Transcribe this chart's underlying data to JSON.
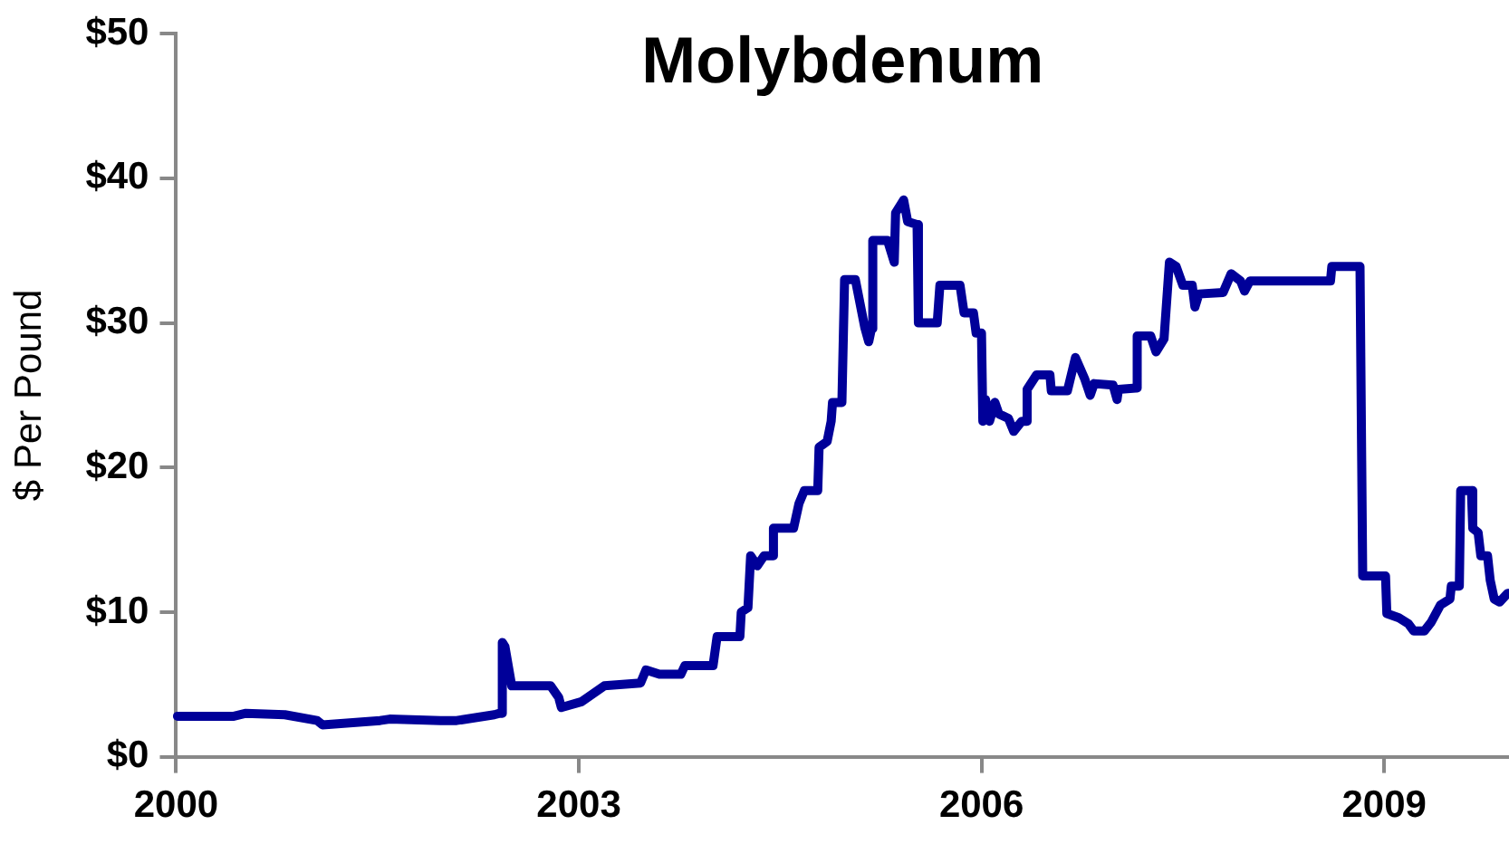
{
  "chart_data": {
    "type": "line",
    "title": "Molybdenum",
    "ylabel": "$ Per Pound",
    "xlim": [
      2000,
      2009.93
    ],
    "xticks": [
      2000,
      2003,
      2006,
      2009
    ],
    "ylim": [
      0,
      50
    ],
    "yticks": [
      {
        "value": 0,
        "label": "$0"
      },
      {
        "value": 10,
        "label": "$10"
      },
      {
        "value": 20,
        "label": "$20"
      },
      {
        "value": 30,
        "label": "$30"
      },
      {
        "value": 40,
        "label": "$40"
      },
      {
        "value": 50,
        "label": "$50"
      }
    ],
    "grid": false,
    "legend": false,
    "marker": "none",
    "line_style": "solid",
    "series": [
      {
        "color": "#000099",
        "x": [
          2000.01,
          2000.43,
          2000.52,
          2000.81,
          2001.05,
          2001.09,
          2001.52,
          2001.59,
          2001.97,
          2002.09,
          2002.37,
          2002.41,
          2002.43,
          2002.43,
          2002.45,
          2002.5,
          2002.79,
          2002.85,
          2002.87,
          2003.02,
          2003.19,
          2003.46,
          2003.5,
          2003.6,
          2003.76,
          2003.79,
          2004.0,
          2004.03,
          2004.2,
          2004.21,
          2004.26,
          2004.28,
          2004.33,
          2004.38,
          2004.44,
          2004.45,
          2004.6,
          2004.64,
          2004.68,
          2004.78,
          2004.79,
          2004.85,
          2004.88,
          2004.89,
          2004.96,
          2004.98,
          2005.06,
          2005.13,
          2005.16,
          2005.18,
          2005.19,
          2005.3,
          2005.35,
          2005.36,
          2005.42,
          2005.45,
          2005.52,
          2005.53,
          2005.67,
          2005.69,
          2005.84,
          2005.87,
          2005.94,
          2005.96,
          2006.0,
          2006.01,
          2006.03,
          2006.06,
          2006.1,
          2006.13,
          2006.2,
          2006.24,
          2006.3,
          2006.33,
          2006.34,
          2006.41,
          2006.51,
          2006.52,
          2006.64,
          2006.7,
          2006.77,
          2006.81,
          2006.84,
          2006.98,
          2007.01,
          2007.02,
          2007.15,
          2007.16,
          2007.26,
          2007.3,
          2007.36,
          2007.4,
          2007.45,
          2007.5,
          2007.57,
          2007.59,
          2007.62,
          2007.8,
          2007.86,
          2007.93,
          2007.96,
          2008.0,
          2008.6,
          2008.61,
          2008.82,
          2008.84,
          2009.01,
          2009.02,
          2009.11,
          2009.18,
          2009.22,
          2009.3,
          2009.35,
          2009.42,
          2009.49,
          2009.5,
          2009.56,
          2009.57,
          2009.65,
          2009.66,
          2009.7,
          2009.72,
          2009.77,
          2009.79,
          2009.82,
          2009.86,
          2009.92
        ],
        "values": [
          2.8,
          2.8,
          3.0,
          2.9,
          2.5,
          2.2,
          2.5,
          2.6,
          2.5,
          2.5,
          2.9,
          3.0,
          3.0,
          7.9,
          7.6,
          4.9,
          4.9,
          4.1,
          3.4,
          3.8,
          4.9,
          5.1,
          6.0,
          5.7,
          5.7,
          6.3,
          6.3,
          8.3,
          8.3,
          10.0,
          10.3,
          13.9,
          13.2,
          13.9,
          13.9,
          15.8,
          15.8,
          17.5,
          18.4,
          18.4,
          21.4,
          21.8,
          23.2,
          24.5,
          24.5,
          33.0,
          33.0,
          29.7,
          28.7,
          29.6,
          35.7,
          35.7,
          34.2,
          37.6,
          38.5,
          37.0,
          36.8,
          30.0,
          30.0,
          32.6,
          32.6,
          30.7,
          30.7,
          29.3,
          29.3,
          23.2,
          24.7,
          23.2,
          24.5,
          23.7,
          23.4,
          22.5,
          23.2,
          23.2,
          25.4,
          26.4,
          26.4,
          25.3,
          25.3,
          27.6,
          26.1,
          25.0,
          25.8,
          25.7,
          24.7,
          25.4,
          25.5,
          29.1,
          29.1,
          28.0,
          28.9,
          34.2,
          33.9,
          32.6,
          32.6,
          31.1,
          32.0,
          32.1,
          33.4,
          32.9,
          32.2,
          32.9,
          32.9,
          33.9,
          33.9,
          12.5,
          12.5,
          9.9,
          9.6,
          9.2,
          8.7,
          8.7,
          9.3,
          10.5,
          10.9,
          11.8,
          11.8,
          18.4,
          18.4,
          15.8,
          15.5,
          13.9,
          13.9,
          12.2,
          10.9,
          10.7,
          11.3
        ]
      }
    ]
  }
}
